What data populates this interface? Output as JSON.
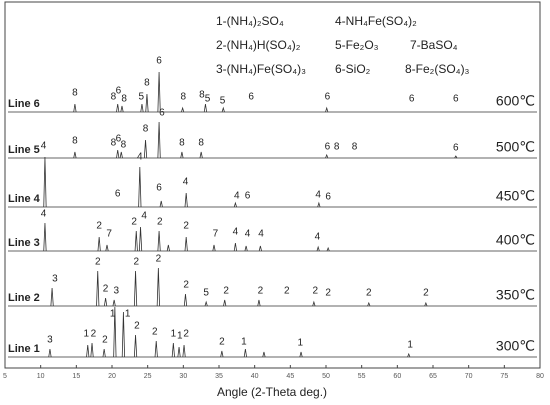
{
  "chart_data": {
    "type": "line",
    "x_label": "Angle (2-Theta deg.)",
    "xlim": [
      5,
      80
    ],
    "xticks": [
      5,
      10,
      15,
      20,
      25,
      30,
      35,
      40,
      45,
      50,
      55,
      60,
      65,
      70,
      75,
      80
    ],
    "phases": [
      "1-(NH₄)₂SO₄",
      "2-(NH₄)H(SO₄)₂",
      "3-(NH₄)Fe(SO₄)₃",
      "4-NH₄Fe(SO₄)₂",
      "5-Fe₂O₃",
      "6-SiO₂",
      "7-BaSO₄",
      "8-Fe₂(SO₄)₃"
    ],
    "series": [
      {
        "name": "Line 1",
        "temperature": "300℃",
        "color": "#333333",
        "x": [
          11.3,
          16.6,
          17.2,
          18.9,
          20.4,
          21.6,
          23.3,
          26.2,
          28.6,
          29.4,
          30.1,
          35.4,
          38.7,
          41.3,
          46.5,
          61.6
        ],
        "values": [
          8,
          12,
          14,
          8,
          50,
          45,
          22,
          16,
          14,
          10,
          12,
          6,
          8,
          5,
          5,
          3
        ],
        "annotations": [
          {
            "text": "3",
            "x": 11.3,
            "y": 12
          },
          {
            "text": "1",
            "x": 16.4,
            "y": 18
          },
          {
            "text": "2",
            "x": 17.4,
            "y": 18
          },
          {
            "text": "2",
            "x": 19.0,
            "y": 12
          },
          {
            "text": "1",
            "x": 20.1,
            "y": 38
          },
          {
            "text": "1",
            "x": 22.2,
            "y": 38
          },
          {
            "text": "2",
            "x": 23.5,
            "y": 26
          },
          {
            "text": "2",
            "x": 26.0,
            "y": 20
          },
          {
            "text": "1",
            "x": 28.6,
            "y": 18
          },
          {
            "text": "1",
            "x": 29.5,
            "y": 16
          },
          {
            "text": "2",
            "x": 30.4,
            "y": 18
          },
          {
            "text": "2",
            "x": 35.4,
            "y": 10
          },
          {
            "text": "1",
            "x": 38.5,
            "y": 10
          },
          {
            "text": "1",
            "x": 46.4,
            "y": 9
          },
          {
            "text": "1",
            "x": 61.8,
            "y": 7
          }
        ]
      },
      {
        "name": "Line 2",
        "temperature": "350℃",
        "color": "#333333",
        "x": [
          11.6,
          18.0,
          19.1,
          20.3,
          23.3,
          26.5,
          30.3,
          33.2,
          35.8,
          40.6,
          48.3,
          56.0,
          64.0
        ],
        "values": [
          18,
          35,
          8,
          6,
          35,
          38,
          12,
          4,
          6,
          6,
          4,
          3,
          3
        ],
        "annotations": [
          {
            "text": "3",
            "x": 12.0,
            "y": 22
          },
          {
            "text": "2",
            "x": 18.0,
            "y": 39
          },
          {
            "text": "2",
            "x": 19.1,
            "y": 12
          },
          {
            "text": "3",
            "x": 20.6,
            "y": 10
          },
          {
            "text": "2",
            "x": 23.4,
            "y": 39
          },
          {
            "text": "2",
            "x": 26.5,
            "y": 42
          },
          {
            "text": "2",
            "x": 30.4,
            "y": 16
          },
          {
            "text": "5",
            "x": 33.2,
            "y": 8
          },
          {
            "text": "2",
            "x": 36.0,
            "y": 10
          },
          {
            "text": "2",
            "x": 40.8,
            "y": 10
          },
          {
            "text": "2",
            "x": 44.5,
            "y": 10
          },
          {
            "text": "2",
            "x": 48.5,
            "y": 10
          },
          {
            "text": "2",
            "x": 50.3,
            "y": 8
          },
          {
            "text": "2",
            "x": 56.0,
            "y": 8
          },
          {
            "text": "2",
            "x": 64.0,
            "y": 8
          }
        ]
      },
      {
        "name": "Line 3",
        "temperature": "400℃",
        "color": "#333333",
        "x": [
          10.6,
          18.2,
          19.3,
          23.4,
          24.0,
          26.6,
          27.9,
          30.4,
          34.3,
          37.3,
          38.8,
          40.8,
          48.9,
          50.3
        ],
        "values": [
          28,
          14,
          6,
          20,
          24,
          20,
          6,
          14,
          6,
          8,
          5,
          5,
          4,
          3
        ],
        "annotations": [
          {
            "text": "4",
            "x": 10.4,
            "y": 32
          },
          {
            "text": "2",
            "x": 18.2,
            "y": 20
          },
          {
            "text": "7",
            "x": 19.6,
            "y": 12
          },
          {
            "text": "2",
            "x": 23.1,
            "y": 24
          },
          {
            "text": "4",
            "x": 24.5,
            "y": 30
          },
          {
            "text": "2",
            "x": 26.7,
            "y": 24
          },
          {
            "text": "2",
            "x": 30.4,
            "y": 20
          },
          {
            "text": "7",
            "x": 34.5,
            "y": 12
          },
          {
            "text": "4",
            "x": 37.3,
            "y": 14
          },
          {
            "text": "4",
            "x": 39.0,
            "y": 12
          },
          {
            "text": "4",
            "x": 40.9,
            "y": 12
          },
          {
            "text": "4",
            "x": 48.8,
            "y": 9
          }
        ]
      },
      {
        "name": "Line 4",
        "temperature": "450℃",
        "color": "#333333",
        "x": [
          10.6,
          23.9,
          26.9,
          30.4,
          37.3,
          49.0
        ],
        "values": [
          50,
          40,
          6,
          14,
          4,
          4
        ],
        "annotations": [
          {
            "text": "4",
            "x": 10.4,
            "y": 56
          },
          {
            "text": "6",
            "x": 20.8,
            "y": 8
          },
          {
            "text": "4",
            "x": 23.9,
            "y": 45
          },
          {
            "text": "6",
            "x": 26.6,
            "y": 14
          },
          {
            "text": "4",
            "x": 30.3,
            "y": 20
          },
          {
            "text": "4",
            "x": 37.5,
            "y": 6
          },
          {
            "text": "6",
            "x": 39.0,
            "y": 6
          },
          {
            "text": "4",
            "x": 48.9,
            "y": 7
          },
          {
            "text": "6",
            "x": 50.3,
            "y": 5
          }
        ]
      },
      {
        "name": "Line 5",
        "temperature": "500℃",
        "color": "#333333",
        "x": [
          14.8,
          20.8,
          21.3,
          24.7,
          26.6,
          29.8,
          32.5,
          50.1,
          68.2
        ],
        "values": [
          6,
          8,
          6,
          18,
          36,
          6,
          6,
          3,
          2
        ],
        "annotations": [
          {
            "text": "8",
            "x": 14.8,
            "y": 12
          },
          {
            "text": "8",
            "x": 20.2,
            "y": 10
          },
          {
            "text": "6",
            "x": 20.9,
            "y": 14
          },
          {
            "text": "8",
            "x": 21.6,
            "y": 8
          },
          {
            "text": "8",
            "x": 24.7,
            "y": 24
          },
          {
            "text": "6",
            "x": 27.0,
            "y": 40
          },
          {
            "text": "8",
            "x": 29.8,
            "y": 10
          },
          {
            "text": "8",
            "x": 32.5,
            "y": 10
          },
          {
            "text": "6",
            "x": 50.2,
            "y": 6
          },
          {
            "text": "8",
            "x": 51.5,
            "y": 6
          },
          {
            "text": "8",
            "x": 54.0,
            "y": 6
          },
          {
            "text": "6",
            "x": 68.2,
            "y": 5
          }
        ]
      },
      {
        "name": "Line 6",
        "temperature": "600℃",
        "color": "#333333",
        "x": [
          14.8,
          20.8,
          21.4,
          24.2,
          24.9,
          26.6,
          29.9,
          33.1,
          35.6,
          50.1
        ],
        "values": [
          8,
          8,
          6,
          8,
          18,
          40,
          4,
          8,
          4,
          4
        ],
        "annotations": [
          {
            "text": "8",
            "x": 14.8,
            "y": 14
          },
          {
            "text": "8",
            "x": 20.2,
            "y": 10
          },
          {
            "text": "6",
            "x": 20.9,
            "y": 16
          },
          {
            "text": "8",
            "x": 21.7,
            "y": 8
          },
          {
            "text": "5",
            "x": 24.1,
            "y": 10
          },
          {
            "text": "8",
            "x": 24.9,
            "y": 24
          },
          {
            "text": "6",
            "x": 26.6,
            "y": 46
          },
          {
            "text": "8",
            "x": 30.0,
            "y": 10
          },
          {
            "text": "8",
            "x": 32.6,
            "y": 12
          },
          {
            "text": "5",
            "x": 33.4,
            "y": 8
          },
          {
            "text": "5",
            "x": 35.5,
            "y": 6
          },
          {
            "text": "6",
            "x": 39.5,
            "y": 10
          },
          {
            "text": "6",
            "x": 50.2,
            "y": 10
          },
          {
            "text": "6",
            "x": 62.0,
            "y": 8
          },
          {
            "text": "6",
            "x": 68.2,
            "y": 8
          }
        ]
      }
    ]
  }
}
